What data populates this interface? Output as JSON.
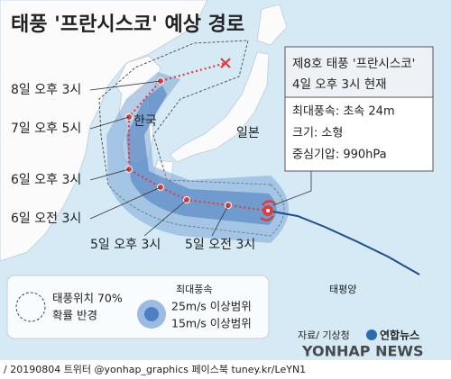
{
  "header": {
    "title": "태풍 '프란시스코' 예상 경로"
  },
  "track_labels": [
    "8일 오후 3시",
    "7일 오후 5시",
    "6일 오후 3시",
    "6일 오전 3시",
    "5일 오후 3시",
    "5일 오전 3시"
  ],
  "places": {
    "korea": "한국",
    "japan": "일본",
    "pacific": "태평양"
  },
  "info": {
    "name": "제8호 태풍 '프란시스코'",
    "time": "4일 오후 3시 현재",
    "wind": "최대풍속: 초속 24m",
    "size": "크기: 소형",
    "pressure": "중심기압: 990hPa"
  },
  "legend": {
    "radius_line1": "태풍위치 70%",
    "radius_line2": "확률 반경",
    "wind_title": "최대풍속",
    "wind_25": "25m/s 이상범위",
    "wind_15": "15m/s 이상범위"
  },
  "source": "자료/ 기상청",
  "logo": "연합뉴스",
  "watermark": "YONHAP NEWS",
  "footer": "/ 20190804  트위터 @yonhap_graphics  페이스북 tuney.kr/LeYN1"
}
